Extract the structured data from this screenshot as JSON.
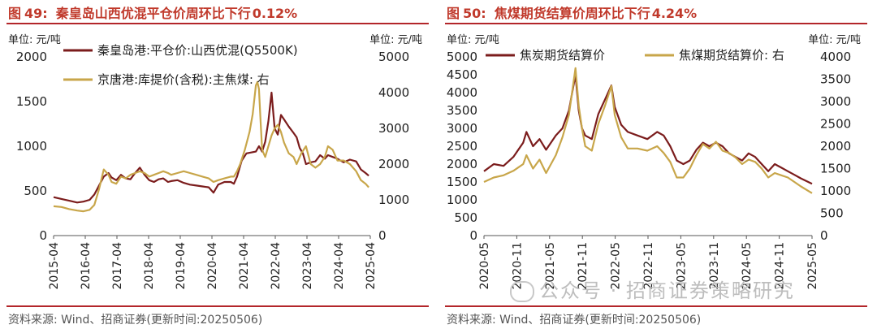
{
  "colors": {
    "accent": "#b3262a",
    "series_dark": "#7b1c1c",
    "series_gold": "#c8a64a"
  },
  "watermark": {
    "icon": "wechat-icon",
    "text": "公众号 · 招商证券策略研究"
  },
  "panels": [
    {
      "title_prefix": "图",
      "title_num": "49:",
      "title_text": "秦皇岛山西优混平仓价周环比下行",
      "title_pct": "0.12%",
      "unit_left": "单位: 元/吨",
      "unit_right": "单位: 元/吨",
      "source": "资料来源: Wind、招商证券(更新时间:20250506)"
    },
    {
      "title_prefix": "图",
      "title_num": "50:",
      "title_text": "焦煤期货结算价周环比下行",
      "title_pct": "4.24%",
      "unit_left": "单位: 元/吨",
      "unit_right": "单位: 元/吨",
      "source": "资料来源: Wind、招商证券(更新时间:20250506)"
    }
  ],
  "chart_data": [
    {
      "type": "line",
      "title": "秦皇岛山西优混平仓价周环比下行0.12%",
      "x_ticks": [
        "2015-04",
        "2016-04",
        "2017-04",
        "2018-04",
        "2019-04",
        "2020-04",
        "2021-04",
        "2022-04",
        "2023-04",
        "2024-04",
        "2025-04"
      ],
      "y_left": {
        "ticks": [
          "0",
          "500",
          "1000",
          "1500",
          "2000"
        ],
        "range": [
          0,
          2000
        ]
      },
      "y_right": {
        "ticks": [
          "0",
          "1000",
          "2000",
          "3000",
          "4000",
          "5000"
        ],
        "range": [
          0,
          5000
        ]
      },
      "x_range": [
        2015.25,
        2025.35
      ],
      "series": [
        {
          "name": "秦皇岛港:平仓价:山西优混(Q5500K)",
          "axis": "left",
          "color": "#7b1c1c",
          "x": [
            2015.25,
            2015.5,
            2015.75,
            2016.0,
            2016.2,
            2016.4,
            2016.55,
            2016.7,
            2016.85,
            2017.0,
            2017.1,
            2017.25,
            2017.4,
            2017.55,
            2017.7,
            2017.85,
            2018.0,
            2018.15,
            2018.3,
            2018.45,
            2018.6,
            2018.75,
            2018.9,
            2019.0,
            2019.2,
            2019.4,
            2019.6,
            2019.8,
            2020.0,
            2020.2,
            2020.35,
            2020.5,
            2020.7,
            2020.9,
            2021.0,
            2021.1,
            2021.25,
            2021.4,
            2021.55,
            2021.7,
            2021.8,
            2021.9,
            2022.0,
            2022.1,
            2022.2,
            2022.3,
            2022.4,
            2022.5,
            2022.6,
            2022.75,
            2022.9,
            2023.0,
            2023.1,
            2023.2,
            2023.3,
            2023.45,
            2023.6,
            2023.75,
            2023.9,
            2024.0,
            2024.15,
            2024.3,
            2024.5,
            2024.7,
            2024.9,
            2025.05,
            2025.2,
            2025.3
          ],
          "y": [
            430,
            410,
            390,
            370,
            380,
            400,
            460,
            560,
            660,
            700,
            650,
            620,
            680,
            640,
            630,
            700,
            760,
            680,
            620,
            600,
            630,
            640,
            600,
            610,
            620,
            590,
            570,
            560,
            550,
            540,
            480,
            570,
            600,
            600,
            580,
            660,
            840,
            920,
            930,
            940,
            1000,
            940,
            1050,
            1280,
            1600,
            1200,
            1130,
            1350,
            1300,
            1220,
            1150,
            1100,
            980,
            920,
            800,
            820,
            830,
            900,
            860,
            900,
            880,
            860,
            820,
            850,
            830,
            740,
            700,
            670
          ]
        },
        {
          "name": "京唐港:库提价(含税):主焦煤: 右",
          "axis": "right",
          "color": "#c8a64a",
          "x": [
            2015.25,
            2015.5,
            2015.75,
            2016.0,
            2016.2,
            2016.4,
            2016.55,
            2016.7,
            2016.85,
            2017.0,
            2017.1,
            2017.25,
            2017.4,
            2017.55,
            2017.7,
            2017.85,
            2018.0,
            2018.15,
            2018.3,
            2018.45,
            2018.6,
            2018.75,
            2018.9,
            2019.0,
            2019.2,
            2019.4,
            2019.6,
            2019.8,
            2020.0,
            2020.2,
            2020.35,
            2020.5,
            2020.7,
            2020.9,
            2021.0,
            2021.1,
            2021.2,
            2021.35,
            2021.5,
            2021.6,
            2021.7,
            2021.75,
            2021.8,
            2021.85,
            2021.9,
            2022.0,
            2022.1,
            2022.2,
            2022.3,
            2022.4,
            2022.5,
            2022.6,
            2022.75,
            2022.9,
            2023.0,
            2023.15,
            2023.3,
            2023.45,
            2023.6,
            2023.75,
            2023.9,
            2024.0,
            2024.15,
            2024.3,
            2024.5,
            2024.7,
            2024.9,
            2025.05,
            2025.2,
            2025.3
          ],
          "y": [
            820,
            800,
            740,
            700,
            680,
            720,
            860,
            1300,
            1850,
            1700,
            1500,
            1450,
            1650,
            1600,
            1700,
            1750,
            1800,
            1750,
            1650,
            1700,
            1750,
            1800,
            1750,
            1700,
            1750,
            1800,
            1750,
            1700,
            1650,
            1600,
            1500,
            1550,
            1600,
            1650,
            1650,
            1800,
            2000,
            2400,
            2900,
            3400,
            4200,
            4300,
            4100,
            3200,
            2400,
            2200,
            2500,
            2800,
            3000,
            3100,
            2900,
            2600,
            2300,
            2200,
            2000,
            2300,
            2500,
            2000,
            1900,
            2000,
            2200,
            2500,
            2400,
            2100,
            2100,
            2000,
            1800,
            1550,
            1450,
            1350
          ]
        }
      ]
    },
    {
      "type": "line",
      "title": "焦煤期货结算价周环比下行4.24%",
      "x_ticks": [
        "2020-05",
        "2020-11",
        "2021-05",
        "2021-11",
        "2022-05",
        "2022-11",
        "2023-05",
        "2023-11",
        "2024-05",
        "2024-11",
        "2025-05"
      ],
      "y_left": {
        "ticks": [
          "0",
          "500",
          "1000",
          "1500",
          "2000",
          "2500",
          "3000",
          "3500",
          "4000",
          "4500",
          "5000"
        ],
        "range": [
          0,
          5000
        ]
      },
      "y_right": {
        "ticks": [
          "0",
          "500",
          "1000",
          "1500",
          "2000",
          "2500",
          "3000",
          "3500",
          "4000"
        ],
        "range": [
          0,
          4000
        ]
      },
      "x_range": [
        2020.35,
        2025.37
      ],
      "series": [
        {
          "name": "焦炭期货结算价",
          "axis": "left",
          "color": "#7b1c1c",
          "x": [
            2020.35,
            2020.5,
            2020.65,
            2020.8,
            2020.95,
            2021.0,
            2021.1,
            2021.2,
            2021.3,
            2021.45,
            2021.55,
            2021.65,
            2021.75,
            2021.8,
            2021.85,
            2021.9,
            2022.0,
            2022.1,
            2022.2,
            2022.3,
            2022.35,
            2022.45,
            2022.55,
            2022.7,
            2022.85,
            2023.0,
            2023.1,
            2023.2,
            2023.3,
            2023.4,
            2023.5,
            2023.6,
            2023.7,
            2023.8,
            2023.9,
            2024.0,
            2024.1,
            2024.2,
            2024.3,
            2024.4,
            2024.5,
            2024.6,
            2024.7,
            2024.8,
            2024.9,
            2025.0,
            2025.1,
            2025.2,
            2025.37
          ],
          "y": [
            1800,
            2000,
            1950,
            2200,
            2600,
            2900,
            2500,
            2700,
            2400,
            2800,
            3000,
            3500,
            4500,
            3500,
            3000,
            2800,
            2700,
            3400,
            3800,
            4200,
            3600,
            3100,
            2900,
            2800,
            2700,
            2900,
            2800,
            2500,
            2100,
            2000,
            2100,
            2400,
            2600,
            2500,
            2600,
            2500,
            2300,
            2200,
            2100,
            2300,
            2200,
            2000,
            1800,
            2000,
            1900,
            1800,
            1700,
            1600,
            1450
          ]
        },
        {
          "name": "焦煤期货结算价: 右",
          "axis": "right",
          "color": "#c8a64a",
          "x": [
            2020.35,
            2020.5,
            2020.65,
            2020.8,
            2020.95,
            2021.0,
            2021.1,
            2021.2,
            2021.3,
            2021.45,
            2021.55,
            2021.65,
            2021.75,
            2021.8,
            2021.85,
            2021.9,
            2022.0,
            2022.1,
            2022.2,
            2022.3,
            2022.35,
            2022.45,
            2022.55,
            2022.7,
            2022.85,
            2023.0,
            2023.1,
            2023.2,
            2023.3,
            2023.4,
            2023.5,
            2023.6,
            2023.7,
            2023.8,
            2023.9,
            2024.0,
            2024.1,
            2024.2,
            2024.3,
            2024.4,
            2024.5,
            2024.6,
            2024.7,
            2024.8,
            2024.9,
            2025.0,
            2025.1,
            2025.2,
            2025.37
          ],
          "y": [
            1200,
            1300,
            1350,
            1450,
            1600,
            1800,
            1500,
            1700,
            1400,
            1800,
            2200,
            2700,
            3750,
            2900,
            2400,
            2000,
            1900,
            2500,
            2900,
            3350,
            2700,
            2200,
            1950,
            1950,
            1900,
            2000,
            1850,
            1650,
            1300,
            1300,
            1500,
            1800,
            2050,
            1950,
            2100,
            1900,
            1850,
            1750,
            1600,
            1700,
            1650,
            1500,
            1300,
            1400,
            1350,
            1300,
            1200,
            1100,
            950
          ]
        }
      ]
    }
  ]
}
